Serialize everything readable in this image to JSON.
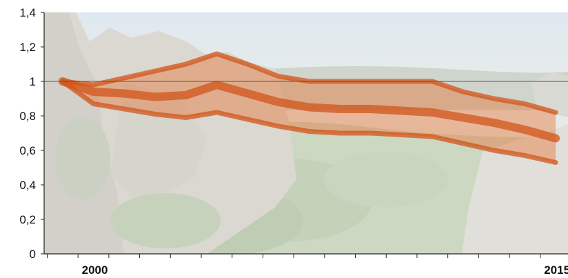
{
  "chart_data": {
    "type": "area",
    "title": "",
    "xlabel": "",
    "ylabel": "",
    "x": [
      1999,
      2000,
      2001,
      2002,
      2003,
      2004,
      2005,
      2006,
      2007,
      2008,
      2009,
      2010,
      2011,
      2012,
      2013,
      2014,
      2015
    ],
    "xlim": [
      1998.4,
      2015.4
    ],
    "ylim": [
      0,
      1.4
    ],
    "y_ticks": [
      "0",
      "0,2",
      "0,4",
      "0,6",
      "0,8",
      "1",
      "1,2",
      "1,4"
    ],
    "y_tick_values": [
      0,
      0.2,
      0.4,
      0.6,
      0.8,
      1.0,
      1.2,
      1.4
    ],
    "x_tick_labels": [
      {
        "x": 2000,
        "label": "2000"
      },
      {
        "x": 2015,
        "label": "2015"
      }
    ],
    "reference_line": 1,
    "series": [
      {
        "values": [
          1.0,
          0.98,
          1.02,
          1.06,
          1.1,
          1.16,
          1.1,
          1.03,
          1.0,
          1.0,
          1.0,
          1.0,
          1.0,
          0.94,
          0.9,
          0.87,
          0.82
        ]
      },
      {
        "values": [
          1.0,
          0.94,
          0.93,
          0.91,
          0.92,
          0.98,
          0.93,
          0.88,
          0.85,
          0.84,
          0.84,
          0.83,
          0.82,
          0.79,
          0.76,
          0.72,
          0.67
        ]
      },
      {
        "values": [
          1.0,
          0.87,
          0.84,
          0.81,
          0.79,
          0.82,
          0.78,
          0.74,
          0.71,
          0.7,
          0.7,
          0.69,
          0.68,
          0.64,
          0.6,
          0.57,
          0.53
        ]
      }
    ],
    "band_color": "#e8631f",
    "line_color": "#d2541a",
    "background": "photo of rocky cliffs and green valley",
    "grid": false,
    "legend": "none"
  }
}
